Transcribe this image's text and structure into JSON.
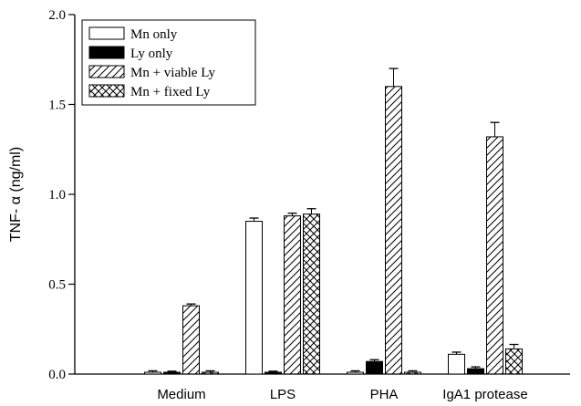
{
  "chart_data": {
    "type": "bar",
    "title": "",
    "xlabel": "",
    "ylabel": "TNF- α  (ng/ml)",
    "ylim": [
      0,
      2.0
    ],
    "yticks": [
      "0.0",
      "0.5",
      "1.0",
      "1.5",
      "2.0"
    ],
    "ytick_values": [
      0,
      0.5,
      1.0,
      1.5,
      2.0
    ],
    "categories": [
      "Medium",
      "LPS",
      "PHA",
      "IgA1 protease"
    ],
    "legend_position": "top-left",
    "grid": false,
    "series": [
      {
        "name": "Mn only",
        "pattern": "empty",
        "values": [
          0.01,
          0.85,
          0.01,
          0.11
        ],
        "errors": [
          0.008,
          0.018,
          0.008,
          0.012
        ]
      },
      {
        "name": "Ly only",
        "pattern": "solid",
        "values": [
          0.01,
          0.01,
          0.07,
          0.03
        ],
        "errors": [
          0.006,
          0.006,
          0.01,
          0.01
        ]
      },
      {
        "name": "Mn + viable Ly",
        "pattern": "hatch",
        "values": [
          0.38,
          0.88,
          1.6,
          1.32
        ],
        "errors": [
          0.01,
          0.015,
          0.1,
          0.08
        ]
      },
      {
        "name": "Mn + fixed Ly",
        "pattern": "crosshatch",
        "values": [
          0.01,
          0.89,
          0.01,
          0.14
        ],
        "errors": [
          0.008,
          0.03,
          0.008,
          0.025
        ]
      }
    ]
  }
}
